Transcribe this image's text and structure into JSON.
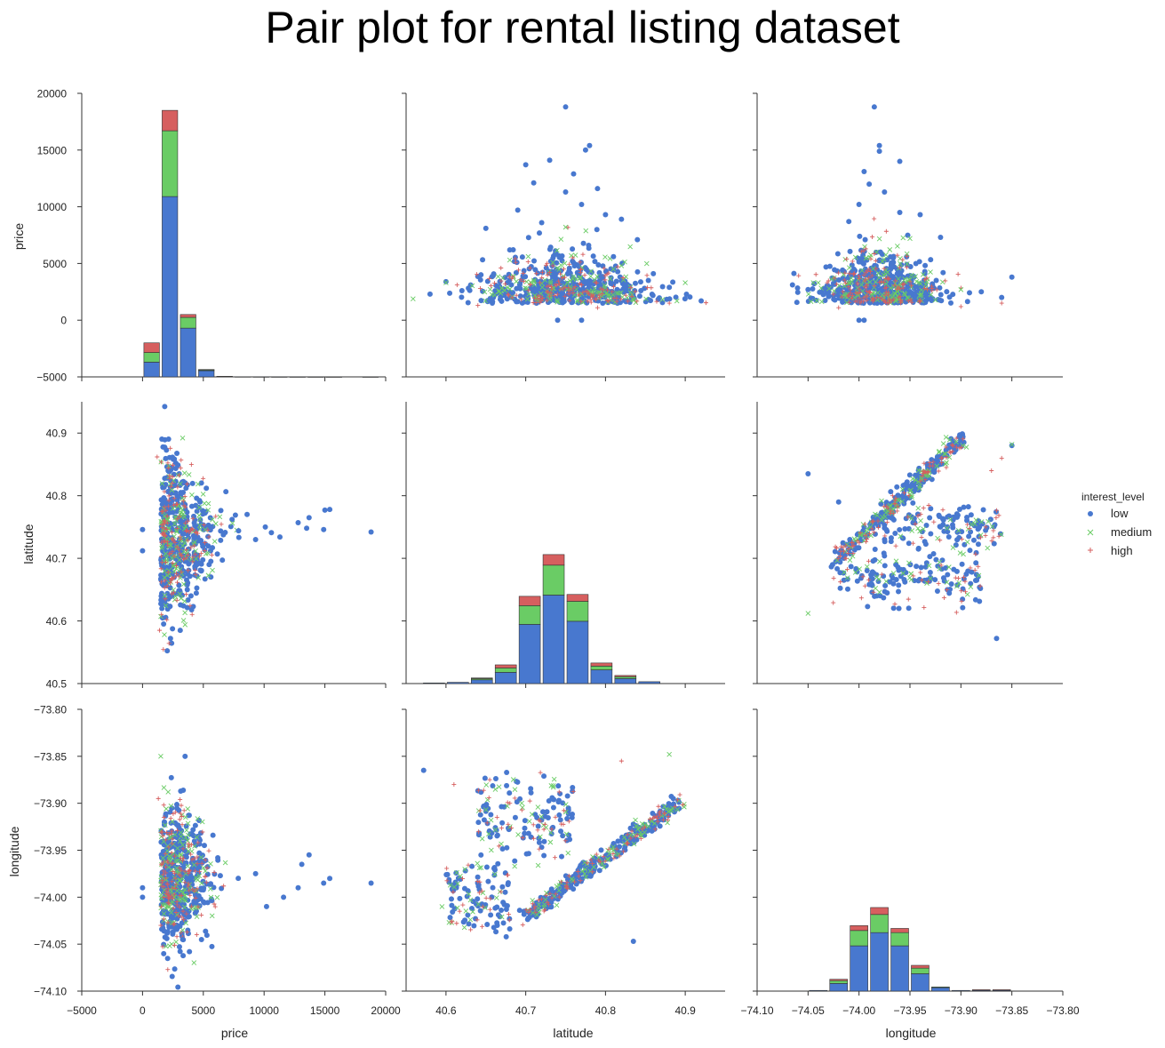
{
  "title": "Pair plot for rental listing dataset",
  "legend": {
    "title": "interest_level",
    "entries": [
      {
        "name": "low",
        "marker": "circle",
        "color": "#4878cf"
      },
      {
        "name": "medium",
        "marker": "x",
        "color": "#6acc65"
      },
      {
        "name": "high",
        "marker": "plus",
        "color": "#d65f5f"
      }
    ],
    "placement": "right"
  },
  "chart_data": [
    {
      "type": "bar",
      "subtype": "stacked-histogram",
      "panel": "price vs price",
      "xlabel": "",
      "ylabel": "price",
      "xlim": [
        -5000,
        20000
      ],
      "ylim": [
        -5000,
        20000
      ],
      "grid": false,
      "xticks": [
        -5000,
        0,
        5000,
        10000,
        15000,
        20000
      ],
      "yticks": [
        -5000,
        0,
        5000,
        10000,
        15000,
        20000
      ],
      "bin_edges": [
        0,
        1500,
        3000,
        4500,
        6000,
        7500,
        9000,
        10500,
        12000,
        13500,
        15000,
        16500,
        18000,
        19500
      ],
      "series": [
        {
          "name": "low",
          "values": [
            1300,
            15900,
            4300,
            550,
            35,
            12,
            8,
            4,
            3,
            2,
            1,
            0,
            1
          ]
        },
        {
          "name": "medium",
          "values": [
            850,
            5800,
            950,
            80,
            5,
            0,
            0,
            0,
            0,
            0,
            0,
            0,
            0
          ]
        },
        {
          "name": "high",
          "values": [
            850,
            1800,
            250,
            20,
            2,
            0,
            0,
            0,
            0,
            0,
            0,
            0,
            0
          ]
        }
      ]
    },
    {
      "type": "scatter",
      "panel": "price vs latitude",
      "xlim": [
        40.55,
        40.95
      ],
      "ylim": [
        -5000,
        20000
      ],
      "xticks": [
        40.6,
        40.7,
        40.8,
        40.9
      ],
      "yticks": [
        -5000,
        0,
        5000,
        10000,
        15000,
        20000
      ],
      "series": [
        {
          "name": "low",
          "points": [
            [
              40.75,
              18800
            ],
            [
              40.78,
              15400
            ],
            [
              40.775,
              15000
            ],
            [
              40.73,
              14100
            ],
            [
              40.7,
              13700
            ],
            [
              40.76,
              12900
            ],
            [
              40.71,
              12100
            ],
            [
              40.79,
              11600
            ],
            [
              40.75,
              11300
            ],
            [
              40.77,
              10200
            ],
            [
              40.69,
              9700
            ],
            [
              40.82,
              8900
            ],
            [
              40.65,
              8100
            ],
            [
              40.84,
              7100
            ],
            [
              40.72,
              8600
            ],
            [
              40.8,
              9300
            ],
            [
              40.74,
              0
            ],
            [
              40.77,
              0
            ],
            [
              40.62,
              2600
            ],
            [
              40.88,
              2900
            ],
            [
              40.58,
              2300
            ],
            [
              40.92,
              1700
            ],
            [
              40.6,
              3400
            ],
            [
              40.86,
              4100
            ],
            [
              40.68,
              6200
            ],
            [
              40.81,
              5600
            ]
          ]
        },
        {
          "name": "medium",
          "points": [
            [
              40.6,
              3300
            ],
            [
              40.9,
              3300
            ],
            [
              40.75,
              8200
            ],
            [
              40.68,
              5300
            ],
            [
              40.82,
              4800
            ]
          ]
        },
        {
          "name": "high",
          "points": [
            [
              40.88,
              1500
            ],
            [
              40.64,
              1300
            ],
            [
              40.79,
              1100
            ]
          ]
        }
      ],
      "note_cloud": "dense points centered near latitude 40.75, price 1500-7000"
    },
    {
      "type": "scatter",
      "panel": "price vs longitude",
      "xlim": [
        -74.1,
        -73.8
      ],
      "ylim": [
        -5000,
        20000
      ],
      "xticks": [
        -74.05,
        -74.0,
        -73.95,
        -73.9,
        -73.85
      ],
      "yticks": [
        -5000,
        0,
        5000,
        10000,
        15000,
        20000
      ],
      "series": [
        {
          "name": "low",
          "points": [
            [
              -73.985,
              18800
            ],
            [
              -73.98,
              15400
            ],
            [
              -73.98,
              14900
            ],
            [
              -73.96,
              14000
            ],
            [
              -73.995,
              13100
            ],
            [
              -73.99,
              12000
            ],
            [
              -73.975,
              11300
            ],
            [
              -74.0,
              10200
            ],
            [
              -73.96,
              9500
            ],
            [
              -73.94,
              9300
            ],
            [
              -74.01,
              8700
            ],
            [
              -73.92,
              7300
            ],
            [
              -74.05,
              2700
            ],
            [
              -73.85,
              3800
            ],
            [
              -74.0,
              0
            ],
            [
              -73.995,
              0
            ],
            [
              -73.86,
              2000
            ],
            [
              -73.88,
              2500
            ],
            [
              -74.03,
              2200
            ]
          ]
        },
        {
          "name": "medium",
          "points": [
            [
              -74.04,
              3300
            ],
            [
              -73.95,
              7200
            ],
            [
              -73.9,
              2700
            ]
          ]
        },
        {
          "name": "high",
          "points": [
            [
              -73.86,
              1500
            ],
            [
              -73.9,
              1200
            ],
            [
              -74.02,
              1100
            ]
          ]
        }
      ]
    },
    {
      "type": "scatter",
      "panel": "latitude vs price",
      "xlim": [
        -5000,
        20000
      ],
      "ylim": [
        40.5,
        40.95
      ],
      "xticks": [
        -5000,
        0,
        5000,
        10000,
        15000,
        20000
      ],
      "yticks": [
        40.5,
        40.6,
        40.7,
        40.8,
        40.9
      ],
      "series": [
        {
          "name": "low",
          "points": [
            [
              18800,
              40.742
            ],
            [
              15400,
              40.778
            ],
            [
              14900,
              40.746
            ],
            [
              15000,
              40.777
            ],
            [
              13700,
              40.765
            ],
            [
              13500,
              40.748
            ],
            [
              12800,
              40.757
            ],
            [
              11300,
              40.734
            ],
            [
              10600,
              40.741
            ],
            [
              10100,
              40.75
            ],
            [
              9300,
              40.73
            ],
            [
              8600,
              40.77
            ],
            [
              0,
              40.746
            ],
            [
              0,
              40.712
            ],
            [
              2300,
              40.572
            ],
            [
              3100,
              40.585
            ],
            [
              7900,
              40.744
            ]
          ]
        },
        {
          "name": "medium",
          "points": [
            [
              3300,
              40.892
            ],
            [
              3500,
              40.594
            ],
            [
              1800,
              40.578
            ]
          ]
        },
        {
          "name": "high",
          "points": [
            [
              1200,
              40.862
            ],
            [
              1400,
              40.585
            ]
          ]
        }
      ]
    },
    {
      "type": "bar",
      "subtype": "stacked-histogram",
      "panel": "latitude vs latitude",
      "xlim": [
        40.55,
        40.95
      ],
      "ylim": [
        40.5,
        40.95
      ],
      "xticks": [
        40.6,
        40.7,
        40.8,
        40.9
      ],
      "yticks": [
        40.5,
        40.6,
        40.7,
        40.8,
        40.9
      ],
      "bin_edges": [
        40.57,
        40.6,
        40.63,
        40.66,
        40.69,
        40.72,
        40.75,
        40.78,
        40.81,
        40.84,
        40.87,
        40.9
      ],
      "series": [
        {
          "name": "low",
          "values": [
            0.001,
            0.002,
            0.006,
            0.018,
            0.095,
            0.142,
            0.1,
            0.022,
            0.008,
            0.003,
            0.0
          ]
        },
        {
          "name": "medium",
          "values": [
            0.0,
            0.0,
            0.002,
            0.007,
            0.03,
            0.048,
            0.032,
            0.006,
            0.003,
            0.0,
            0.0
          ]
        },
        {
          "name": "high",
          "values": [
            0.0,
            0.0,
            0.001,
            0.005,
            0.015,
            0.017,
            0.011,
            0.005,
            0.002,
            0.0,
            0.0
          ]
        }
      ]
    },
    {
      "type": "scatter",
      "panel": "latitude vs longitude",
      "xlim": [
        -74.1,
        -73.8
      ],
      "ylim": [
        40.5,
        40.95
      ],
      "xticks": [
        -74.05,
        -74.0,
        -73.95,
        -73.9,
        -73.85
      ],
      "yticks": [
        40.5,
        40.6,
        40.7,
        40.8,
        40.9
      ],
      "series": [
        {
          "name": "low",
          "points": [
            [
              -74.05,
              40.835
            ],
            [
              -73.865,
              40.572
            ],
            [
              -74.02,
              40.79
            ],
            [
              -73.85,
              40.88
            ]
          ]
        },
        {
          "name": "medium",
          "points": [
            [
              -73.85,
              40.882
            ],
            [
              -74.05,
              40.612
            ]
          ]
        },
        {
          "name": "high",
          "points": [
            [
              -73.86,
              40.86
            ],
            [
              -73.87,
              40.84
            ]
          ]
        }
      ],
      "note_cloud": "two diagonal bands (Manhattan, Brooklyn) and clusters"
    },
    {
      "type": "scatter",
      "panel": "longitude vs price",
      "xlim": [
        -5000,
        20000
      ],
      "ylim": [
        -74.1,
        -73.8
      ],
      "xticks": [
        -5000,
        0,
        5000,
        10000,
        15000,
        20000
      ],
      "yticks": [
        -74.1,
        -74.05,
        -74.0,
        -73.95,
        -73.9,
        -73.85,
        -73.8
      ],
      "series": [
        {
          "name": "low",
          "points": [
            [
              18800,
              -73.985
            ],
            [
              15400,
              -73.98
            ],
            [
              14900,
              -73.985
            ],
            [
              13700,
              -73.955
            ],
            [
              13100,
              -73.965
            ],
            [
              12800,
              -73.99
            ],
            [
              11600,
              -74.0
            ],
            [
              10200,
              -74.01
            ],
            [
              9300,
              -73.975
            ],
            [
              0,
              -73.99
            ],
            [
              0,
              -74.0
            ],
            [
              3300,
              -74.045
            ],
            [
              3500,
              -73.85
            ]
          ]
        },
        {
          "name": "medium",
          "points": [
            [
              3300,
              -74.035
            ],
            [
              1500,
              -73.85
            ]
          ]
        },
        {
          "name": "high",
          "points": [
            [
              1300,
              -73.895
            ],
            [
              1500,
              -74.03
            ]
          ]
        }
      ]
    },
    {
      "type": "scatter",
      "panel": "longitude vs latitude",
      "xlim": [
        40.55,
        40.95
      ],
      "ylim": [
        -74.1,
        -73.8
      ],
      "xticks": [
        40.6,
        40.7,
        40.8,
        40.9
      ],
      "yticks": [
        -74.1,
        -74.05,
        -74.0,
        -73.95,
        -73.9,
        -73.85,
        -73.8
      ],
      "series": [
        {
          "name": "low",
          "points": [
            [
              40.572,
              -73.865
            ],
            [
              40.835,
              -74.047
            ],
            [
              40.885,
              -73.895
            ]
          ]
        },
        {
          "name": "medium",
          "points": [
            [
              40.595,
              -74.01
            ],
            [
              40.88,
              -73.848
            ]
          ]
        },
        {
          "name": "high",
          "points": [
            [
              40.61,
              -73.88
            ],
            [
              40.82,
              -73.855
            ]
          ]
        }
      ]
    },
    {
      "type": "bar",
      "subtype": "stacked-histogram",
      "panel": "longitude vs longitude",
      "xlabel": "longitude",
      "xlim": [
        -74.1,
        -73.8
      ],
      "ylim": [
        -74.1,
        -73.8
      ],
      "xticks": [
        -74.1,
        -74.05,
        -74.0,
        -73.95,
        -73.9,
        -73.85,
        -73.8
      ],
      "yticks": [
        -74.1,
        -74.05,
        -74.0,
        -73.95,
        -73.9,
        -73.85,
        -73.8
      ],
      "bin_edges": [
        -74.05,
        -74.03,
        -74.01,
        -73.99,
        -73.97,
        -73.95,
        -73.93,
        -73.91,
        -73.89,
        -73.87,
        -73.85
      ],
      "series": [
        {
          "name": "low",
          "values": [
            0.001,
            0.011,
            0.065,
            0.084,
            0.065,
            0.025,
            0.005,
            0.001,
            0.001,
            0.001
          ]
        },
        {
          "name": "medium",
          "values": [
            0.0,
            0.004,
            0.022,
            0.026,
            0.019,
            0.008,
            0.001,
            0.0,
            0.0,
            0.0
          ]
        },
        {
          "name": "high",
          "values": [
            0.0,
            0.002,
            0.007,
            0.01,
            0.006,
            0.004,
            0.0,
            0.0,
            0.001,
            0.001
          ]
        }
      ]
    }
  ],
  "axes": {
    "bottom": [
      "price",
      "latitude",
      "longitude"
    ],
    "left": [
      "price",
      "latitude",
      "longitude"
    ]
  },
  "tick_labels": {
    "price": [
      "−5000",
      "0",
      "5000",
      "10000",
      "15000",
      "20000"
    ],
    "latitude_y": [
      "40.5",
      "40.6",
      "40.7",
      "40.8",
      "40.9"
    ],
    "latitude_x": [
      "40.6",
      "40.7",
      "40.8",
      "40.9"
    ],
    "longitude_y": [
      "−73.80",
      "−73.85",
      "−73.90",
      "−73.95",
      "−74.00",
      "−74.05",
      "−74.10"
    ],
    "longitude_x": [
      "−74.10",
      "−74.05",
      "−74.00",
      "−73.95",
      "−73.90",
      "−73.85",
      "−73.80"
    ]
  },
  "colors": {
    "low": "#4878cf",
    "medium": "#6acc65",
    "high": "#d65f5f",
    "axis": "#333333"
  }
}
